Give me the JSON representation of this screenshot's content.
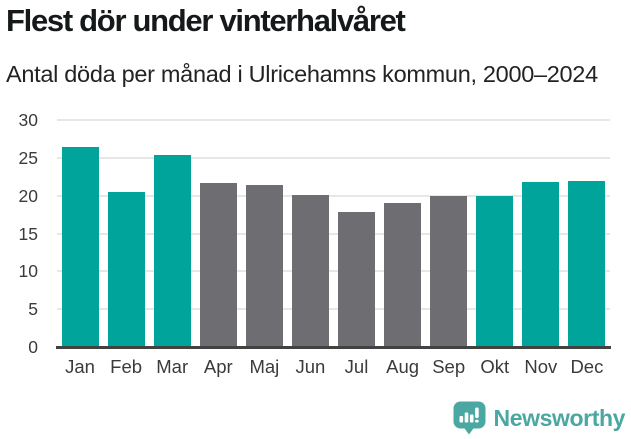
{
  "header": {
    "title": "Flest dör under vinterhalvåret",
    "subtitle": "Antal döda per månad i Ulricehamns kommun, 2000–2024"
  },
  "chart_data": {
    "type": "bar",
    "title": "Flest dör under vinterhalvåret",
    "subtitle": "Antal döda per månad i Ulricehamns kommun, 2000–2024",
    "categories": [
      "Jan",
      "Feb",
      "Mar",
      "Apr",
      "Maj",
      "Jun",
      "Jul",
      "Aug",
      "Sep",
      "Okt",
      "Nov",
      "Dec"
    ],
    "values": [
      26.5,
      20.5,
      25.4,
      21.7,
      21.4,
      20.1,
      17.8,
      19.1,
      20.0,
      19.9,
      21.8,
      21.9
    ],
    "bar_colors": [
      "#00a49b",
      "#00a49b",
      "#00a49b",
      "#6d6d72",
      "#6d6d72",
      "#6d6d72",
      "#6d6d72",
      "#6d6d72",
      "#6d6d72",
      "#00a49b",
      "#00a49b",
      "#00a49b"
    ],
    "highlight_color": "#00a49b",
    "default_color": "#6d6d72",
    "xlabel": "",
    "ylabel": "",
    "ylim": [
      0,
      30
    ],
    "yticks": [
      0,
      5,
      10,
      15,
      20,
      25,
      30
    ],
    "grid": true,
    "legend": "none",
    "gridline_color": "#e7e7e7",
    "axis_color": "#424242"
  },
  "footer": {
    "brand": "Newsworthy",
    "logo_icon": "speech-bubble-bar-chart-icon",
    "brand_color": "#4ba7a1"
  }
}
